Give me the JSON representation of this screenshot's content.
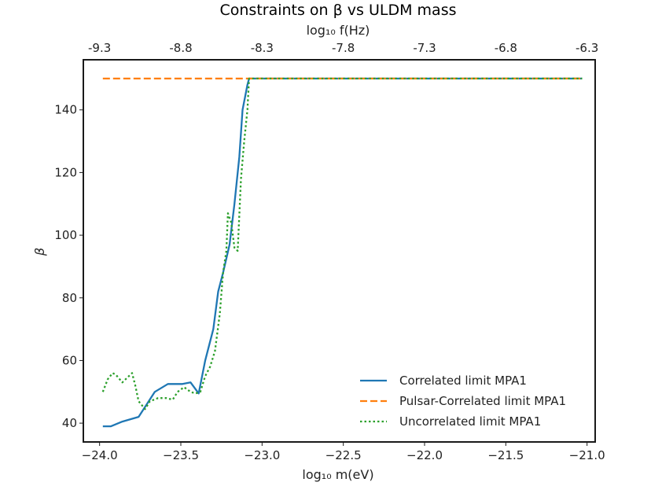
{
  "chart_data": {
    "type": "line",
    "title": "Constraints on β vs ULDM mass",
    "xlabel": "log₁₀ m(eV)",
    "ylabel": "β",
    "top_xlabel": "log₁₀ f(Hz)",
    "xlim": [
      -24.1,
      -20.95
    ],
    "ylim": [
      34,
      156
    ],
    "x_ticks": [
      -24.0,
      -23.5,
      -23.0,
      -22.5,
      -22.0,
      -21.5,
      -21.0
    ],
    "x_tick_labels": [
      "−24.0",
      "−23.5",
      "−23.0",
      "−22.5",
      "−22.0",
      "−21.5",
      "−21.0"
    ],
    "y_ticks": [
      40,
      60,
      80,
      100,
      120,
      140
    ],
    "y_tick_labels": [
      "40",
      "60",
      "80",
      "100",
      "120",
      "140"
    ],
    "top_x_ticks": [
      -24.0,
      -23.5,
      -23.0,
      -22.5,
      -22.0,
      -21.5,
      -21.0
    ],
    "top_x_tick_labels": [
      "-9.3",
      "-8.8",
      "-8.3",
      "-7.8",
      "-7.3",
      "-6.8",
      "-6.3"
    ],
    "legend_position": "lower-right",
    "grid": false,
    "series": [
      {
        "name": "Correlated limit MPA1",
        "color": "#1f77b4",
        "style": "solid",
        "x": [
          -23.98,
          -23.93,
          -23.86,
          -23.76,
          -23.66,
          -23.58,
          -23.54,
          -23.49,
          -23.44,
          -23.39,
          -23.35,
          -23.3,
          -23.27,
          -23.24,
          -23.2,
          -23.17,
          -23.14,
          -23.12,
          -23.09,
          -23.08,
          -21.03
        ],
        "y": [
          39,
          39,
          40.5,
          42,
          50,
          52.5,
          52.5,
          52.5,
          53,
          49.5,
          60,
          70,
          82,
          88,
          97,
          110,
          125,
          140,
          148,
          150,
          150
        ]
      },
      {
        "name": "Pulsar-Correlated limit MPA1",
        "color": "#ff7f0e",
        "style": "dashed",
        "x": [
          -23.98,
          -21.03
        ],
        "y": [
          150,
          150
        ]
      },
      {
        "name": "Uncorrelated limit MPA1",
        "color": "#2ca02c",
        "style": "dotted",
        "x": [
          -23.98,
          -23.95,
          -23.92,
          -23.9,
          -23.86,
          -23.84,
          -23.8,
          -23.78,
          -23.76,
          -23.72,
          -23.69,
          -23.64,
          -23.59,
          -23.55,
          -23.52,
          -23.48,
          -23.44,
          -23.41,
          -23.38,
          -23.35,
          -23.32,
          -23.29,
          -23.26,
          -23.24,
          -23.22,
          -23.21,
          -23.19,
          -23.17,
          -23.15,
          -23.13,
          -23.11,
          -23.09,
          -23.08,
          -21.03
        ],
        "y": [
          50,
          54,
          56,
          55.5,
          53,
          54,
          56,
          52,
          47,
          44.5,
          47,
          48,
          48,
          47.5,
          50,
          51.5,
          50,
          49.5,
          50,
          55,
          58,
          63,
          75,
          88,
          95,
          107,
          104,
          96,
          95,
          118,
          130,
          140,
          150,
          150
        ]
      }
    ]
  }
}
